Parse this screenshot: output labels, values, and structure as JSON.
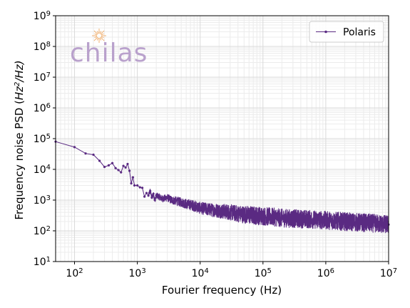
{
  "chart_data": {
    "type": "line",
    "xlabel": "Fourier frequency (Hz)",
    "ylabel_main": "Frequency noise PSD (",
    "ylabel_unit": "Hz",
    "ylabel_exp": "2",
    "ylabel_tail": "/Hz)",
    "xscale": "log",
    "yscale": "log",
    "xlim": [
      50,
      10000000
    ],
    "ylim": [
      10,
      1000000000
    ],
    "grid": "major+minor",
    "legend_position": "top-right",
    "x_ticks": [
      {
        "base": "10",
        "exp": "2",
        "value": 100
      },
      {
        "base": "10",
        "exp": "3",
        "value": 1000
      },
      {
        "base": "10",
        "exp": "4",
        "value": 10000
      },
      {
        "base": "10",
        "exp": "5",
        "value": 100000
      },
      {
        "base": "10",
        "exp": "6",
        "value": 1000000
      },
      {
        "base": "10",
        "exp": "7",
        "value": 10000000
      }
    ],
    "y_ticks": [
      {
        "base": "10",
        "exp": "1",
        "value": 10
      },
      {
        "base": "10",
        "exp": "2",
        "value": 100
      },
      {
        "base": "10",
        "exp": "3",
        "value": 1000
      },
      {
        "base": "10",
        "exp": "4",
        "value": 10000
      },
      {
        "base": "10",
        "exp": "5",
        "value": 100000
      },
      {
        "base": "10",
        "exp": "6",
        "value": 1000000
      },
      {
        "base": "10",
        "exp": "7",
        "value": 10000000
      },
      {
        "base": "10",
        "exp": "8",
        "value": 100000000
      },
      {
        "base": "10",
        "exp": "9",
        "value": 1000000000
      }
    ],
    "series": [
      {
        "name": "Polaris",
        "color": "#5a2a82",
        "style": "line-with-dot-markers",
        "points": [
          [
            50,
            80000
          ],
          [
            100,
            53000
          ],
          [
            150,
            33000
          ],
          [
            200,
            30000
          ],
          [
            250,
            19000
          ],
          [
            300,
            12000
          ],
          [
            350,
            13500
          ],
          [
            400,
            16000
          ],
          [
            450,
            11000
          ],
          [
            500,
            9500
          ],
          [
            550,
            8000
          ],
          [
            600,
            13000
          ],
          [
            650,
            11500
          ],
          [
            700,
            15000
          ],
          [
            750,
            9000
          ],
          [
            800,
            3500
          ],
          [
            850,
            5500
          ],
          [
            900,
            3000
          ],
          [
            1000,
            3000
          ],
          [
            1100,
            2600
          ],
          [
            1200,
            2500
          ],
          [
            1300,
            1300
          ],
          [
            1400,
            1700
          ],
          [
            1500,
            1400
          ],
          [
            1600,
            2000
          ],
          [
            1700,
            1200
          ],
          [
            1800,
            1600
          ],
          [
            1900,
            1000
          ],
          [
            2000,
            1400
          ],
          [
            2200,
            1300
          ],
          [
            2500,
            1100
          ],
          [
            3000,
            1200
          ],
          [
            3500,
            1000
          ],
          [
            4000,
            950
          ],
          [
            5000,
            850
          ],
          [
            6000,
            750
          ],
          [
            7000,
            700
          ],
          [
            8000,
            650
          ],
          [
            10000,
            550
          ],
          [
            12000,
            520
          ],
          [
            15000,
            480
          ],
          [
            20000,
            450
          ],
          [
            30000,
            400
          ],
          [
            40000,
            360
          ],
          [
            50000,
            340
          ],
          [
            70000,
            320
          ],
          [
            100000,
            300
          ],
          [
            150000,
            280
          ],
          [
            200000,
            260
          ],
          [
            300000,
            250
          ],
          [
            500000,
            240
          ],
          [
            700000,
            230
          ],
          [
            1000000,
            220
          ],
          [
            2000000,
            200
          ],
          [
            3000000,
            190
          ],
          [
            5000000,
            180
          ],
          [
            7000000,
            170
          ],
          [
            10000000,
            160
          ]
        ]
      }
    ]
  },
  "logo": {
    "text": "chilas",
    "colors": {
      "text": "#b9a1cc",
      "burst": "#f0b070"
    }
  }
}
